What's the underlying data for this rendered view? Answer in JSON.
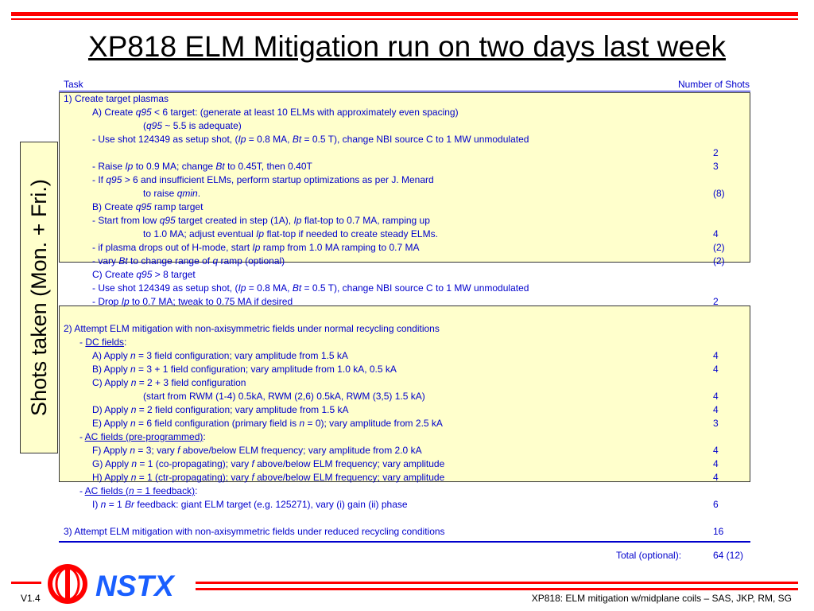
{
  "title": "XP818 ELM Mitigation run on two days last week",
  "header": {
    "task": "Task",
    "shots": "Number of Shots"
  },
  "side_label": "Shots taken (Mon. + Fri.)",
  "rows": [
    {
      "indent": 0,
      "segs": [
        {
          "t": "1) Create target plasmas"
        }
      ],
      "shots": ""
    },
    {
      "indent": 1,
      "segs": [
        {
          "t": "A) Create "
        },
        {
          "t": "q95",
          "i": true
        },
        {
          "t": " < 6 target: (generate at least 10 ELMs with approximately even spacing)"
        }
      ],
      "shots": ""
    },
    {
      "indent": 2,
      "segs": [
        {
          "t": "("
        },
        {
          "t": "q95",
          "i": true
        },
        {
          "t": " ~ 5.5 is adequate)"
        }
      ],
      "shots": ""
    },
    {
      "indent": 1,
      "segs": [
        {
          "t": "- Use shot 124349 as setup shot, ("
        },
        {
          "t": "Ip",
          "i": true
        },
        {
          "t": " = 0.8 MA, "
        },
        {
          "t": "Bt",
          "i": true
        },
        {
          "t": " = 0.5 T), change NBI source C to 1 MW unmodulated"
        }
      ],
      "shots": ""
    },
    {
      "indent": 1,
      "segs": [],
      "shots": "2"
    },
    {
      "indent": 1,
      "segs": [
        {
          "t": "- Raise "
        },
        {
          "t": "Ip",
          "i": true
        },
        {
          "t": " to 0.9 MA; change "
        },
        {
          "t": "Bt",
          "i": true
        },
        {
          "t": " to 0.45T, then 0.40T"
        }
      ],
      "shots": "3"
    },
    {
      "indent": 1,
      "segs": [
        {
          "t": "- If "
        },
        {
          "t": "q95",
          "i": true
        },
        {
          "t": " > 6 and insufficient ELMs, perform startup optimizations as per J. Menard"
        }
      ],
      "shots": ""
    },
    {
      "indent": 2,
      "segs": [
        {
          "t": "to raise "
        },
        {
          "t": "qmin",
          "i": true
        },
        {
          "t": "."
        }
      ],
      "shots": "(8)"
    },
    {
      "indent": 1,
      "segs": [
        {
          "t": "B) Create "
        },
        {
          "t": "q95",
          "i": true
        },
        {
          "t": " ramp target"
        }
      ],
      "shots": ""
    },
    {
      "indent": 1,
      "segs": [
        {
          "t": "- Start from low "
        },
        {
          "t": "q95",
          "i": true
        },
        {
          "t": " target created in step (1A), "
        },
        {
          "t": "Ip",
          "i": true
        },
        {
          "t": " flat-top to 0.7 MA, ramping up"
        }
      ],
      "shots": ""
    },
    {
      "indent": 2,
      "segs": [
        {
          "t": "to 1.0 MA; adjust eventual "
        },
        {
          "t": "Ip",
          "i": true
        },
        {
          "t": " flat-top if needed to create steady ELMs."
        }
      ],
      "shots": "4"
    },
    {
      "indent": 1,
      "segs": [
        {
          "t": "- if plasma drops out of H-mode, start "
        },
        {
          "t": "Ip",
          "i": true
        },
        {
          "t": " ramp from 1.0 MA ramping to 0.7 MA"
        }
      ],
      "shots": "(2)"
    },
    {
      "indent": 1,
      "segs": [
        {
          "t": "- vary "
        },
        {
          "t": "Bt",
          "i": true
        },
        {
          "t": " to change range of "
        },
        {
          "t": "q",
          "i": true
        },
        {
          "t": " ramp (optional)"
        }
      ],
      "shots": "(2)"
    },
    {
      "indent": 1,
      "segs": [
        {
          "t": "C) Create "
        },
        {
          "t": "q95",
          "i": true
        },
        {
          "t": " > 8 target"
        }
      ],
      "shots": ""
    },
    {
      "indent": 1,
      "segs": [
        {
          "t": "- Use shot 124349 as setup shot, ("
        },
        {
          "t": "Ip",
          "i": true
        },
        {
          "t": " = 0.8 MA, "
        },
        {
          "t": "Bt",
          "i": true
        },
        {
          "t": " = 0.5 T), change NBI source C to 1 MW unmodulated"
        }
      ],
      "shots": ""
    },
    {
      "indent": 1,
      "segs": [
        {
          "t": "- Drop "
        },
        {
          "t": "Ip",
          "i": true
        },
        {
          "t": " to 0.7 MA; tweak to 0.75 MA if desired"
        }
      ],
      "shots": "2"
    },
    {
      "indent": 0,
      "segs": [],
      "shots": ""
    },
    {
      "indent": 0,
      "segs": [
        {
          "t": "2) Attempt ELM mitigation with non-axisymmetric fields under normal recycling conditions"
        }
      ],
      "shots": ""
    },
    {
      "indent": 3,
      "segs": [
        {
          "t": "- "
        },
        {
          "t": "DC fields",
          "u": true
        },
        {
          "t": ":"
        }
      ],
      "shots": ""
    },
    {
      "indent": 1,
      "segs": [
        {
          "t": "A) Apply "
        },
        {
          "t": "n",
          "i": true
        },
        {
          "t": " = 3 field configuration; vary amplitude from 1.5 kA"
        }
      ],
      "shots": "4"
    },
    {
      "indent": 1,
      "segs": [
        {
          "t": "B) Apply "
        },
        {
          "t": "n",
          "i": true
        },
        {
          "t": " = 3 + 1 field configuration; vary amplitude from 1.0 kA, 0.5 kA"
        }
      ],
      "shots": "4"
    },
    {
      "indent": 1,
      "segs": [
        {
          "t": "C) Apply "
        },
        {
          "t": "n",
          "i": true
        },
        {
          "t": " = 2 + 3 field configuration"
        }
      ],
      "shots": ""
    },
    {
      "indent": 2,
      "segs": [
        {
          "t": "(start from RWM (1-4) 0.5kA, RWM (2,6) 0.5kA, RWM (3,5) 1.5 kA)"
        }
      ],
      "shots": "4"
    },
    {
      "indent": 1,
      "segs": [
        {
          "t": "D) Apply "
        },
        {
          "t": "n",
          "i": true
        },
        {
          "t": " = 2 field configuration; vary amplitude from 1.5 kA"
        }
      ],
      "shots": "4"
    },
    {
      "indent": 1,
      "segs": [
        {
          "t": "E) Apply "
        },
        {
          "t": "n",
          "i": true
        },
        {
          "t": " = 6 field configuration (primary field is "
        },
        {
          "t": "n",
          "i": true
        },
        {
          "t": " = 0); vary amplitude from 2.5 kA"
        }
      ],
      "shots": "3"
    },
    {
      "indent": 3,
      "segs": [
        {
          "t": "- "
        },
        {
          "t": "AC fields (pre-programmed)",
          "u": true
        },
        {
          "t": ":"
        }
      ],
      "shots": ""
    },
    {
      "indent": 1,
      "segs": [
        {
          "t": "F) Apply "
        },
        {
          "t": "n",
          "i": true
        },
        {
          "t": " = 3; vary "
        },
        {
          "t": "f",
          "i": true
        },
        {
          "t": " above/below ELM frequency; vary amplitude from 2.0 kA"
        }
      ],
      "shots": "4"
    },
    {
      "indent": 1,
      "segs": [
        {
          "t": "G) Apply "
        },
        {
          "t": "n",
          "i": true
        },
        {
          "t": " = 1 (co-propagating); vary "
        },
        {
          "t": "f",
          "i": true
        },
        {
          "t": " above/below ELM frequency; vary amplitude"
        }
      ],
      "shots": "4"
    },
    {
      "indent": 1,
      "segs": [
        {
          "t": "H) Apply "
        },
        {
          "t": "n",
          "i": true
        },
        {
          "t": " = 1 (ctr-propagating); vary "
        },
        {
          "t": "f",
          "i": true
        },
        {
          "t": " above/below ELM frequency; vary amplitude"
        }
      ],
      "shots": "4"
    },
    {
      "indent": 3,
      "segs": [
        {
          "t": "- "
        },
        {
          "t": "AC fields (",
          "u": true
        },
        {
          "t": "n",
          "u": true,
          "i": true
        },
        {
          "t": " = 1 feedback)",
          "u": true
        },
        {
          "t": ":"
        }
      ],
      "shots": ""
    },
    {
      "indent": 1,
      "segs": [
        {
          "t": "I) "
        },
        {
          "t": "n",
          "i": true
        },
        {
          "t": " = 1 "
        },
        {
          "t": "Br",
          "i": true
        },
        {
          "t": " feedback: giant ELM target (e.g. 125271), vary (i) gain (ii) phase"
        }
      ],
      "shots": "6"
    },
    {
      "indent": 0,
      "segs": [],
      "shots": ""
    },
    {
      "indent": 0,
      "segs": [
        {
          "t": "3) Attempt ELM mitigation with non-axisymmetric fields under reduced recycling conditions"
        }
      ],
      "shots": "16"
    }
  ],
  "total": {
    "label": "Total (optional):",
    "value": "64 (12)"
  },
  "footer": {
    "version": "V1.4",
    "brand": "NSTX",
    "text": "XP818: ELM mitigation w/midplane coils – SAS, JKP, RM, SG"
  },
  "colors": {
    "accent": "#ff0000",
    "text_blue": "#0000cc",
    "highlight": "#ffffcc",
    "brand_blue": "#1a5fff"
  }
}
